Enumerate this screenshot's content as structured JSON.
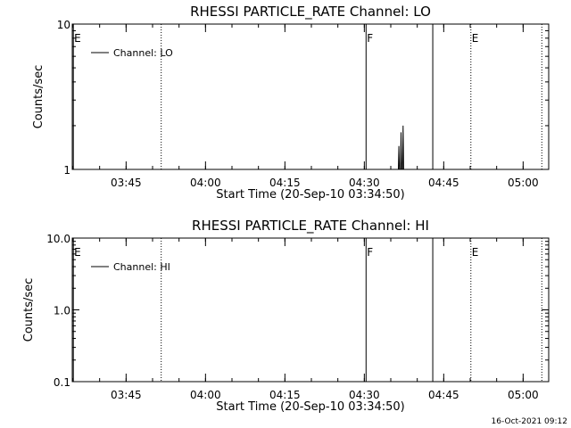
{
  "chart_data": [
    {
      "type": "line",
      "title": "RHESSI PARTICLE_RATE Channel: LO",
      "xlabel": "Start Time (20-Sep-10 03:34:50)",
      "ylabel": "Counts/sec",
      "yscale": "log",
      "ylim": [
        1,
        10
      ],
      "yticks": [
        "1",
        "10"
      ],
      "xlim_minutes": [
        0,
        90
      ],
      "xticks": [
        "03:45",
        "04:00",
        "04:15",
        "04:30",
        "04:45",
        "05:00"
      ],
      "xtick_minutes": [
        10.17,
        25.17,
        40.17,
        55.17,
        70.17,
        85.17
      ],
      "legend": {
        "label": "Channel: LO",
        "placement": "top-left"
      },
      "series": [
        {
          "name": "Channel: LO",
          "points": [
            [
              61.6,
              1
            ],
            [
              61.7,
              1.45
            ],
            [
              61.8,
              1
            ],
            [
              62.0,
              1
            ],
            [
              62.1,
              1.8
            ],
            [
              62.2,
              1
            ],
            [
              62.4,
              1
            ],
            [
              62.5,
              2.0
            ],
            [
              62.6,
              1
            ]
          ]
        }
      ],
      "event_lines": [
        {
          "minute": 0.2,
          "label": "E",
          "style": "solid"
        },
        {
          "minute": 16.8,
          "label": "",
          "style": "dotted"
        },
        {
          "minute": 55.5,
          "label": "F",
          "style": "solid"
        },
        {
          "minute": 68.1,
          "label": "",
          "style": "solid"
        },
        {
          "minute": 75.3,
          "label": "E",
          "style": "dotted"
        },
        {
          "minute": 88.7,
          "label": "",
          "style": "dotted"
        }
      ]
    },
    {
      "type": "line",
      "title": "RHESSI PARTICLE_RATE Channel: HI",
      "xlabel": "Start Time (20-Sep-10 03:34:50)",
      "ylabel": "Counts/sec",
      "yscale": "log",
      "ylim": [
        0.1,
        10
      ],
      "yticks": [
        "0.1",
        "1.0",
        "10.0"
      ],
      "xlim_minutes": [
        0,
        90
      ],
      "xticks": [
        "03:45",
        "04:00",
        "04:15",
        "04:30",
        "04:45",
        "05:00"
      ],
      "xtick_minutes": [
        10.17,
        25.17,
        40.17,
        55.17,
        70.17,
        85.17
      ],
      "legend": {
        "label": "Channel: HI",
        "placement": "top-left"
      },
      "series": [
        {
          "name": "Channel: HI",
          "points": []
        }
      ],
      "event_lines": [
        {
          "minute": 0.2,
          "label": "E",
          "style": "solid"
        },
        {
          "minute": 16.8,
          "label": "",
          "style": "dotted"
        },
        {
          "minute": 55.5,
          "label": "F",
          "style": "solid"
        },
        {
          "minute": 68.1,
          "label": "",
          "style": "solid"
        },
        {
          "minute": 75.3,
          "label": "E",
          "style": "dotted"
        },
        {
          "minute": 88.7,
          "label": "",
          "style": "dotted"
        }
      ]
    }
  ],
  "footer": {
    "timestamp": "16-Oct-2021 09:12"
  }
}
